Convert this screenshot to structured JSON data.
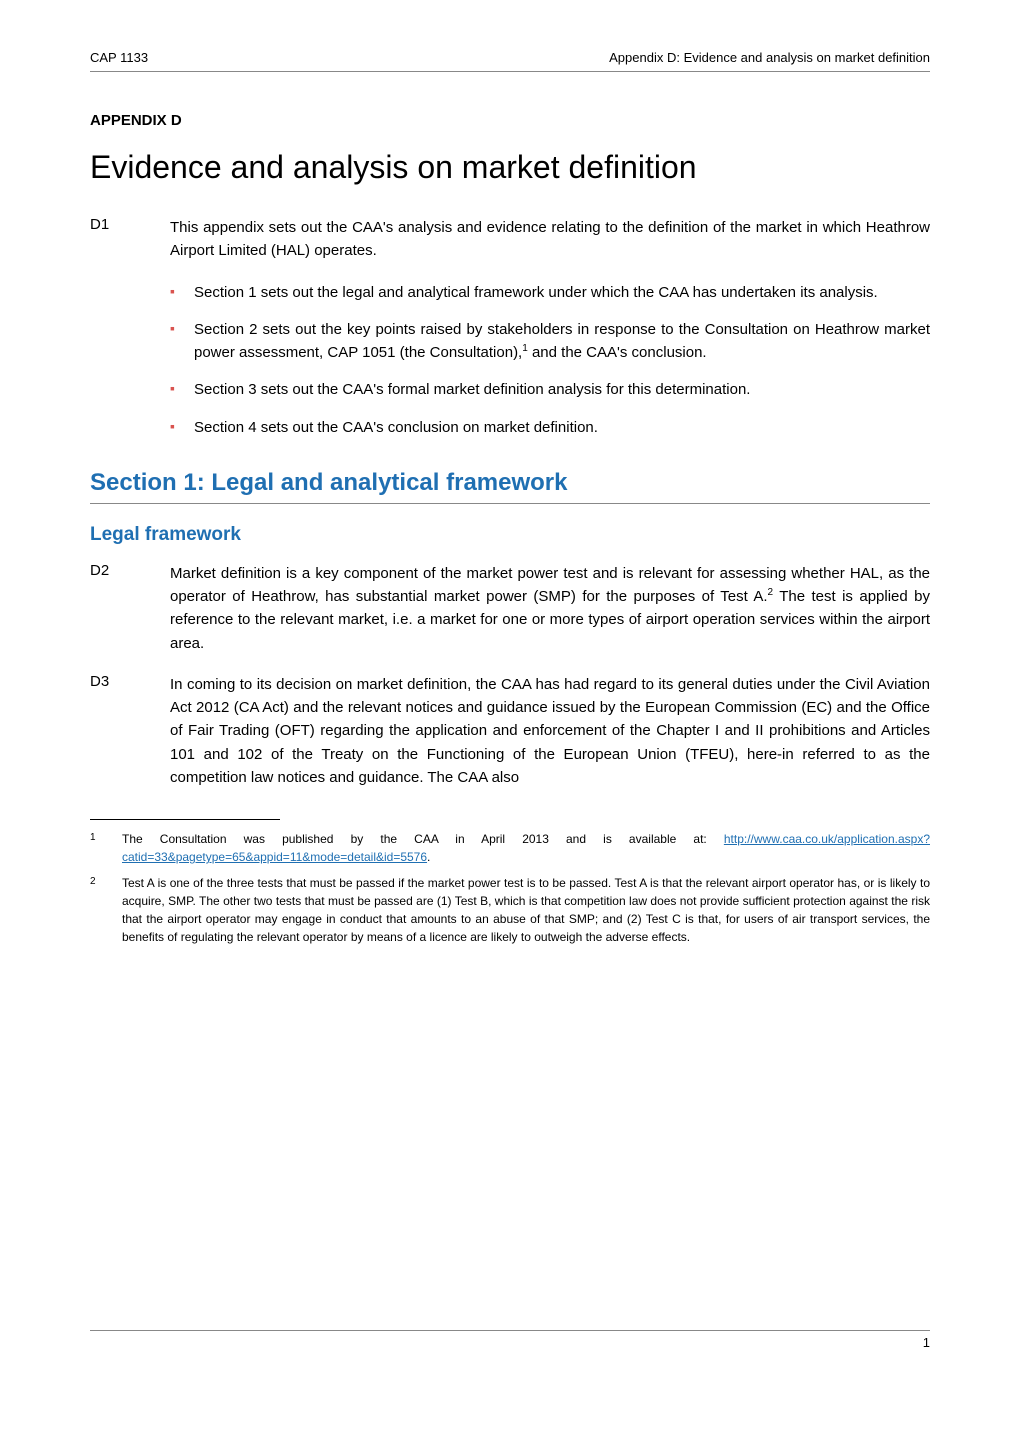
{
  "header": {
    "left": "CAP 1133",
    "right": "Appendix D: Evidence and analysis on market definition"
  },
  "appendix_label": "APPENDIX D",
  "title": "Evidence and analysis on market definition",
  "para_d1": {
    "num": "D1",
    "intro": "This appendix sets out the CAA's analysis and evidence relating to the definition of the market in which Heathrow Airport Limited (HAL) operates.",
    "bullets": [
      "Section 1 sets out the legal and analytical framework under which the CAA has undertaken its analysis.",
      "Section 2 sets out the key points raised by stakeholders in response to the Consultation on Heathrow market power assessment, CAP 1051 (the Consultation),",
      "Section 3 sets out the CAA's formal market definition analysis for this determination.",
      "Section 4 sets out the CAA's conclusion on market definition."
    ],
    "bullet2_tail": " and the CAA's conclusion."
  },
  "section1_heading": "Section 1: Legal and analytical framework",
  "legal_heading": "Legal framework",
  "para_d2": {
    "num": "D2",
    "text_a": "Market definition is a key component of the market power test and is relevant for assessing whether HAL, as the operator of Heathrow, has substantial market power (SMP) for the purposes of Test A.",
    "text_b": " The test is applied by reference to the relevant market, i.e. a market for one or more types of airport operation services within the airport area."
  },
  "para_d3": {
    "num": "D3",
    "text": "In coming to its decision on market definition, the CAA has had regard to its general duties under the Civil Aviation Act 2012 (CA Act) and the relevant notices and guidance issued by the European Commission (EC) and the Office of Fair Trading (OFT) regarding the application and enforcement of the Chapter I and II prohibitions and Articles 101 and 102 of the Treaty on the Functioning of the European Union (TFEU), here-in referred to as the competition law notices and guidance. The CAA also"
  },
  "footnotes": {
    "fn1_a": "The Consultation was published by the CAA in April 2013 and is available at: ",
    "fn1_link": "http://www.caa.co.uk/application.aspx?catid=33&pagetype=65&appid=11&mode=detail&id=5576",
    "fn1_c": ".",
    "fn2": "Test A is one of the three tests that must be passed if the market power test is to be passed. Test A is that the relevant airport operator has, or is likely to acquire, SMP. The other two tests that must be passed are (1) Test B, which is that competition law does not provide sufficient protection against the risk that the airport operator may engage in conduct that amounts to an abuse of that SMP; and (2) Test C is that, for users of air transport services, the benefits of regulating the relevant operator by means of a licence are likely to outweigh the adverse effects."
  },
  "page_number": "1",
  "colors": {
    "heading_blue": "#1f6fb2",
    "bullet_red": "#d9534f",
    "text": "#000000"
  }
}
